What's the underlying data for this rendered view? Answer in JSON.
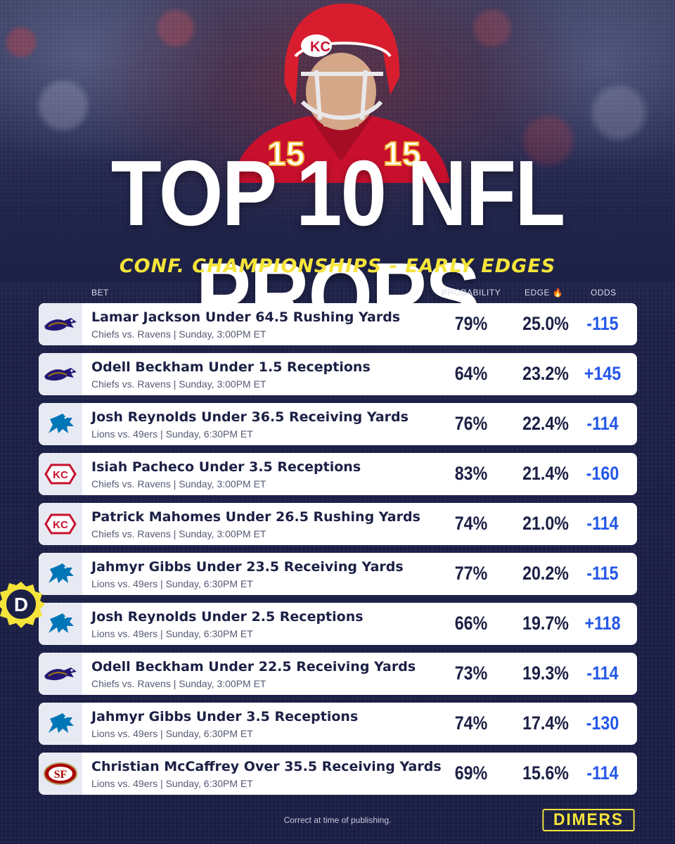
{
  "header": {
    "title": "TOP 10 NFL PROPS",
    "subtitle": "CONF. CHAMPIONSHIPS - EARLY EDGES"
  },
  "columns": {
    "bet": "BET",
    "probability": "PROBABILITY",
    "edge": "EDGE",
    "edge_icon": "fire-icon",
    "odds": "ODDS"
  },
  "colors": {
    "background": "#1c2045",
    "accent_yellow": "#f5e43a",
    "odds_blue": "#2457e8",
    "text_dark": "#1c2045"
  },
  "props": [
    {
      "team": "ravens",
      "bet": "Lamar Jackson Under 64.5 Rushing Yards",
      "game": "Chiefs vs. Ravens | Sunday, 3:00PM ET",
      "probability": "79%",
      "edge": "25.0%",
      "odds": "-115"
    },
    {
      "team": "ravens",
      "bet": "Odell Beckham Under 1.5 Receptions",
      "game": "Chiefs vs. Ravens | Sunday, 3:00PM ET",
      "probability": "64%",
      "edge": "23.2%",
      "odds": "+145"
    },
    {
      "team": "lions",
      "bet": "Josh Reynolds Under 36.5 Receiving Yards",
      "game": "Lions vs. 49ers | Sunday, 6:30PM ET",
      "probability": "76%",
      "edge": "22.4%",
      "odds": "-114"
    },
    {
      "team": "chiefs",
      "bet": "Isiah Pacheco Under 3.5 Receptions",
      "game": "Chiefs vs. Ravens | Sunday, 3:00PM ET",
      "probability": "83%",
      "edge": "21.4%",
      "odds": "-160"
    },
    {
      "team": "chiefs",
      "bet": "Patrick Mahomes Under 26.5 Rushing Yards",
      "game": "Chiefs vs. Ravens | Sunday, 3:00PM ET",
      "probability": "74%",
      "edge": "21.0%",
      "odds": "-114"
    },
    {
      "team": "lions",
      "bet": "Jahmyr Gibbs Under 23.5 Receiving Yards",
      "game": "Lions vs. 49ers | Sunday, 6:30PM ET",
      "probability": "77%",
      "edge": "20.2%",
      "odds": "-115"
    },
    {
      "team": "lions",
      "bet": "Josh Reynolds Under 2.5 Receptions",
      "game": "Lions vs. 49ers | Sunday, 6:30PM ET",
      "probability": "66%",
      "edge": "19.7%",
      "odds": "+118"
    },
    {
      "team": "ravens",
      "bet": "Odell Beckham Under 22.5 Receiving Yards",
      "game": "Chiefs vs. Ravens | Sunday, 3:00PM ET",
      "probability": "73%",
      "edge": "19.3%",
      "odds": "-114"
    },
    {
      "team": "lions",
      "bet": "Jahmyr Gibbs Under 3.5 Receptions",
      "game": "Lions vs. 49ers | Sunday, 6:30PM ET",
      "probability": "74%",
      "edge": "17.4%",
      "odds": "-130"
    },
    {
      "team": "49ers",
      "bet": "Christian McCaffrey Over 35.5 Receiving Yards",
      "game": "Lions vs. 49ers | Sunday, 6:30PM ET",
      "probability": "69%",
      "edge": "15.6%",
      "odds": "-114"
    }
  ],
  "player": {
    "jersey_number": "15"
  },
  "badge": {
    "letter": "D"
  },
  "footer": {
    "note": "Correct at time of publishing.",
    "brand": "DIMERS"
  }
}
